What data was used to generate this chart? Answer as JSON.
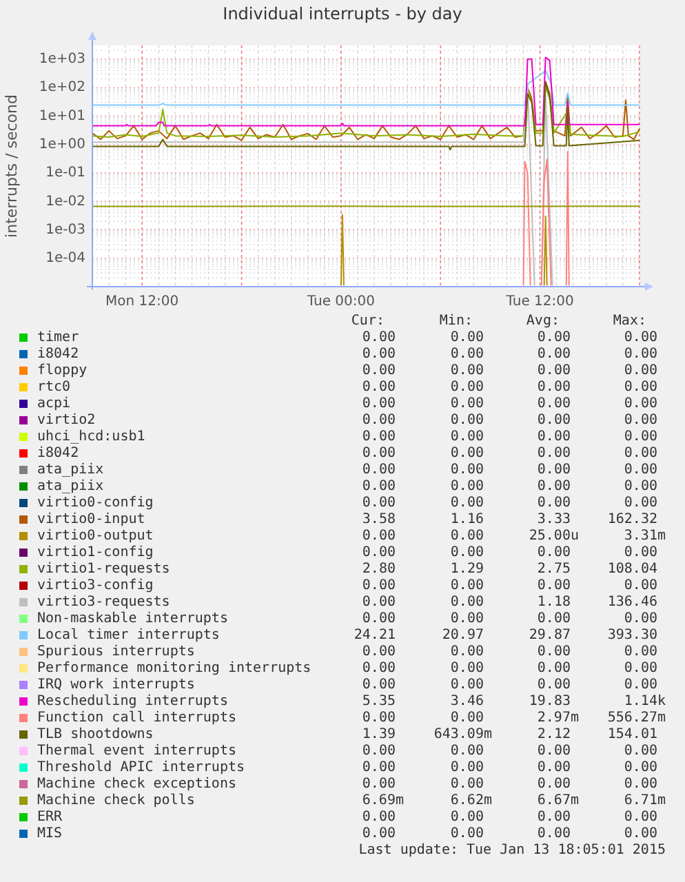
{
  "chart_data": {
    "type": "line",
    "title": "Individual interrupts - by day",
    "ylabel": "interrupts / second",
    "log": "y",
    "grid": true,
    "legend": "bottom",
    "line_style": "solid",
    "marker": "none",
    "xlim": [
      "2015-01-12T09:00",
      "2015-01-13T18:00"
    ],
    "xticks": [
      {
        "value": "2015-01-12T12:00",
        "label": "Mon 12:00"
      },
      {
        "value": "2015-01-12T18:00",
        "label": null
      },
      {
        "value": "2015-01-13T00:00",
        "label": "Tue 00:00"
      },
      {
        "value": "2015-01-13T06:00",
        "label": null
      },
      {
        "value": "2015-01-13T12:00",
        "label": "Tue 12:00"
      },
      {
        "value": "2015-01-13T18:00",
        "label": null
      }
    ],
    "ylim": [
      1e-05,
      3000
    ],
    "yticks": [
      {
        "value": 1000,
        "label": "1e+03"
      },
      {
        "value": 100,
        "label": "1e+02"
      },
      {
        "value": 10,
        "label": "1e+01"
      },
      {
        "value": 1,
        "label": "1e+00"
      },
      {
        "value": 0.1,
        "label": "1e-01"
      },
      {
        "value": 0.01,
        "label": "1e-02"
      },
      {
        "value": 0.001,
        "label": "1e-03"
      },
      {
        "value": 0.0001,
        "label": "1e-04"
      }
    ],
    "series": [
      {
        "name": "timer",
        "color": "#00cc00"
      },
      {
        "name": "i8042",
        "color": "#0066b3"
      },
      {
        "name": "floppy",
        "color": "#ff8000"
      },
      {
        "name": "rtc0",
        "color": "#ffcc00"
      },
      {
        "name": "acpi",
        "color": "#330099"
      },
      {
        "name": "virtio2",
        "color": "#990099"
      },
      {
        "name": "uhci_hcd:usb1",
        "color": "#ccff00"
      },
      {
        "name": "i8042",
        "color": "#ff0000"
      },
      {
        "name": "ata_piix",
        "color": "#808080"
      },
      {
        "name": "ata_piix",
        "color": "#008f00"
      },
      {
        "name": "virtio0-config",
        "color": "#00487d"
      },
      {
        "name": "virtio0-input",
        "color": "#b35a00",
        "x": [
          "2015-01-12T09:00",
          "2015-01-12T09:30",
          "2015-01-12T10:00",
          "2015-01-12T10:30",
          "2015-01-12T11:00",
          "2015-01-12T11:30",
          "2015-01-12T12:00",
          "2015-01-12T12:30",
          "2015-01-12T13:00",
          "2015-01-12T13:30",
          "2015-01-12T14:00",
          "2015-01-12T14:30",
          "2015-01-12T15:00",
          "2015-01-12T15:30",
          "2015-01-12T16:00",
          "2015-01-12T16:30",
          "2015-01-12T17:00",
          "2015-01-12T17:30",
          "2015-01-12T18:00",
          "2015-01-12T18:30",
          "2015-01-12T19:00",
          "2015-01-12T19:30",
          "2015-01-12T20:00",
          "2015-01-12T20:30",
          "2015-01-12T21:00",
          "2015-01-12T21:30",
          "2015-01-12T22:00",
          "2015-01-12T22:30",
          "2015-01-12T23:00",
          "2015-01-12T23:30",
          "2015-01-13T00:00",
          "2015-01-13T00:30",
          "2015-01-13T01:00",
          "2015-01-13T01:30",
          "2015-01-13T02:00",
          "2015-01-13T02:30",
          "2015-01-13T03:00",
          "2015-01-13T03:30",
          "2015-01-13T04:00",
          "2015-01-13T04:30",
          "2015-01-13T05:00",
          "2015-01-13T05:30",
          "2015-01-13T06:00",
          "2015-01-13T06:30",
          "2015-01-13T07:00",
          "2015-01-13T07:30",
          "2015-01-13T08:00",
          "2015-01-13T08:30",
          "2015-01-13T09:00",
          "2015-01-13T09:30",
          "2015-01-13T10:00",
          "2015-01-13T10:30",
          "2015-01-13T11:00",
          "2015-01-13T11:15",
          "2015-01-13T11:30",
          "2015-01-13T11:45",
          "2015-01-13T12:10",
          "2015-01-13T12:20",
          "2015-01-13T12:35",
          "2015-01-13T12:50",
          "2015-01-13T13:30",
          "2015-01-13T13:40",
          "2015-01-13T13:50",
          "2015-01-13T14:30",
          "2015-01-13T15:00",
          "2015-01-13T15:30",
          "2015-01-13T16:00",
          "2015-01-13T16:30",
          "2015-01-13T17:00",
          "2015-01-13T17:10",
          "2015-01-13T17:20",
          "2015-01-13T17:40",
          "2015-01-13T18:00"
        ],
        "values": [
          2.5,
          1.5,
          3,
          1.6,
          2,
          4.5,
          1.5,
          2.5,
          3,
          1.6,
          4.5,
          1.5,
          2,
          2.5,
          1.6,
          5,
          1.8,
          2,
          1.4,
          4,
          1.6,
          2.2,
          1.8,
          5,
          1.5,
          2,
          2.4,
          1.5,
          4.5,
          1.8,
          2,
          4,
          1.5,
          2.2,
          1.6,
          4.5,
          1.8,
          1.5,
          2.3,
          4.5,
          1.6,
          2,
          1.5,
          4.5,
          1.8,
          2.2,
          1.5,
          4.5,
          1.6,
          2.5,
          4,
          1.8,
          2,
          100,
          40,
          3,
          3,
          162.32,
          60,
          3,
          2,
          50,
          2,
          4,
          1.6,
          2.5,
          4.5,
          1.8,
          2,
          36,
          2,
          1.5,
          3.58
        ]
      },
      {
        "name": "virtio0-output",
        "color": "#b38f00",
        "x": [
          "2015-01-13T00:00",
          "2015-01-13T00:05",
          "2015-01-13T00:10",
          "2015-01-13T06:00",
          "2015-01-13T12:15",
          "2015-01-13T12:20",
          "2015-01-13T12:25"
        ],
        "values": [
          1.1e-05,
          0.00331,
          1.1e-05,
          null,
          1.1e-05,
          0.003,
          1.1e-05
        ]
      },
      {
        "name": "virtio1-config",
        "color": "#6b006b"
      },
      {
        "name": "virtio1-requests",
        "color": "#8fb300",
        "x": [
          "2015-01-12T09:00",
          "2015-01-12T10:00",
          "2015-01-12T11:00",
          "2015-01-12T12:00",
          "2015-01-12T13:00",
          "2015-01-12T13:15",
          "2015-01-12T13:30",
          "2015-01-12T14:00",
          "2015-01-12T16:00",
          "2015-01-12T18:00",
          "2015-01-12T20:00",
          "2015-01-12T22:00",
          "2015-01-13T00:00",
          "2015-01-13T02:00",
          "2015-01-13T04:00",
          "2015-01-13T06:00",
          "2015-01-13T08:00",
          "2015-01-13T10:00",
          "2015-01-13T11:00",
          "2015-01-13T11:15",
          "2015-01-13T11:30",
          "2015-01-13T11:45",
          "2015-01-13T12:10",
          "2015-01-13T12:20",
          "2015-01-13T12:35",
          "2015-01-13T12:50",
          "2015-01-13T13:40",
          "2015-01-13T13:50",
          "2015-01-13T15:00",
          "2015-01-13T17:00",
          "2015-01-13T18:00"
        ],
        "values": [
          2,
          1.8,
          2.2,
          1.9,
          2.5,
          17,
          2.5,
          2,
          1.9,
          2.1,
          1.8,
          2,
          2.5,
          2,
          2.2,
          1.9,
          2.3,
          2,
          2,
          80,
          30,
          2.5,
          2.5,
          108.04,
          40,
          2.5,
          15,
          2.3,
          2.1,
          1.9,
          2.8
        ]
      },
      {
        "name": "virtio3-config",
        "color": "#b30000"
      },
      {
        "name": "virtio3-requests",
        "color": "#bebebe",
        "x": [
          "2015-01-12T09:00",
          "2015-01-13T00:00",
          "2015-01-13T11:00",
          "2015-01-13T11:15",
          "2015-01-13T11:40",
          "2015-01-13T12:00",
          "2015-01-13T12:05",
          "2015-01-13T12:20",
          "2015-01-13T12:45"
        ],
        "values": [
          1.2,
          1.2,
          1.2,
          136.46,
          1.1e-05,
          null,
          1.1e-05,
          50,
          1.1e-05
        ]
      },
      {
        "name": "Non-maskable interrupts",
        "color": "#80ff80"
      },
      {
        "name": "Local timer interrupts",
        "color": "#80c9ff",
        "x": [
          "2015-01-12T09:00",
          "2015-01-12T12:00",
          "2015-01-12T13:00",
          "2015-01-12T13:15",
          "2015-01-12T13:30",
          "2015-01-12T18:00",
          "2015-01-13T00:00",
          "2015-01-13T06:00",
          "2015-01-13T11:05",
          "2015-01-13T11:15",
          "2015-01-13T12:20",
          "2015-01-13T12:40",
          "2015-01-13T12:50",
          "2015-01-13T13:30",
          "2015-01-13T13:40",
          "2015-01-13T13:50",
          "2015-01-13T18:00"
        ],
        "values": [
          24,
          24,
          24,
          27,
          24,
          24,
          24,
          24,
          24,
          130,
          393.3,
          140,
          24,
          24,
          63,
          24,
          24.21
        ]
      },
      {
        "name": "Spurious interrupts",
        "color": "#ffc080"
      },
      {
        "name": "Performance monitoring interrupts",
        "color": "#ffe680"
      },
      {
        "name": "IRQ work interrupts",
        "color": "#aa80ff"
      },
      {
        "name": "Rescheduling interrupts",
        "color": "#ee00cc",
        "x": [
          "2015-01-12T09:00",
          "2015-01-12T11:00",
          "2015-01-12T11:05",
          "2015-01-12T11:10",
          "2015-01-12T12:50",
          "2015-01-12T13:00",
          "2015-01-12T13:15",
          "2015-01-12T13:20",
          "2015-01-12T16:00",
          "2015-01-12T16:05",
          "2015-01-12T16:10",
          "2015-01-13T00:00",
          "2015-01-13T00:05",
          "2015-01-13T00:10",
          "2015-01-13T11:05",
          "2015-01-13T11:15",
          "2015-01-13T11:30",
          "2015-01-13T11:45",
          "2015-01-13T12:10",
          "2015-01-13T12:20",
          "2015-01-13T12:35",
          "2015-01-13T12:50",
          "2015-01-13T13:35",
          "2015-01-13T13:40",
          "2015-01-13T13:45",
          "2015-01-13T17:55",
          "2015-01-13T18:00"
        ],
        "values": [
          4.5,
          4.5,
          5,
          4.5,
          4.5,
          6,
          6,
          4.5,
          4.5,
          5,
          4.5,
          4.5,
          5.5,
          4.5,
          4.5,
          1000,
          1000,
          5,
          5,
          1140,
          900,
          5,
          5,
          30,
          5,
          5,
          5.35
        ]
      },
      {
        "name": "Function call interrupts",
        "color": "#ff8080",
        "x": [
          "2015-01-13T11:00",
          "2015-01-13T11:05",
          "2015-01-13T11:15",
          "2015-01-13T11:25",
          "2015-01-13T11:45",
          "2015-01-13T12:05",
          "2015-01-13T12:15",
          "2015-01-13T12:25",
          "2015-01-13T12:40",
          "2015-01-13T13:00",
          "2015-01-13T13:35",
          "2015-01-13T13:40",
          "2015-01-13T13:45"
        ],
        "values": [
          1.1e-05,
          0.25,
          0.1,
          1.1e-05,
          null,
          1.1e-05,
          0.05,
          0.3,
          1.1e-05,
          null,
          1.1e-05,
          0.55627,
          1.1e-05
        ]
      },
      {
        "name": "TLB shootdowns",
        "color": "#666600",
        "x": [
          "2015-01-12T09:00",
          "2015-01-12T13:00",
          "2015-01-12T13:15",
          "2015-01-12T13:30",
          "2015-01-13T00:00",
          "2015-01-13T06:30",
          "2015-01-13T06:35",
          "2015-01-13T06:40",
          "2015-01-13T11:05",
          "2015-01-13T11:15",
          "2015-01-13T11:30",
          "2015-01-13T11:45",
          "2015-01-13T12:10",
          "2015-01-13T12:20",
          "2015-01-13T12:35",
          "2015-01-13T12:50",
          "2015-01-13T13:35",
          "2015-01-13T13:40",
          "2015-01-13T13:45",
          "2015-01-13T18:00"
        ],
        "values": [
          0.85,
          0.85,
          1.5,
          0.85,
          0.85,
          0.85,
          0.65,
          0.85,
          0.85,
          60,
          30,
          0.9,
          0.9,
          154.01,
          50,
          0.9,
          0.9,
          20,
          0.9,
          1.39
        ]
      },
      {
        "name": "Thermal event interrupts",
        "color": "#ffbfff"
      },
      {
        "name": "Threshold APIC interrupts",
        "color": "#00ffcc"
      },
      {
        "name": "Machine check exceptions",
        "color": "#cc6699"
      },
      {
        "name": "Machine check polls",
        "color": "#999900",
        "x": [
          "2015-01-12T09:00",
          "2015-01-12T15:00",
          "2015-01-12T21:00",
          "2015-01-13T03:00",
          "2015-01-13T09:00",
          "2015-01-13T15:00",
          "2015-01-13T18:00"
        ],
        "values": [
          0.00667,
          0.00662,
          0.00671,
          0.00667,
          0.00665,
          0.0067,
          0.00669
        ]
      },
      {
        "name": "ERR",
        "color": "#00cc00"
      },
      {
        "name": "MIS",
        "color": "#0066b3"
      }
    ],
    "annotations": [
      "Cur: Min: Avg: Max:",
      "0.00 0.00 0.00 0.00",
      "0.00 0.00 0.00 0.00",
      "0.00 0.00 0.00 0.00",
      "0.00 0.00 0.00 0.00",
      "0.00 0.00 0.00 0.00",
      "0.00 0.00 0.00 0.00",
      "0.00 0.00 0.00 0.00",
      "0.00 0.00 0.00 0.00",
      "0.00 0.00 0.00 0.00",
      "0.00 0.00 0.00 0.00",
      "0.00 0.00 0.00 0.00",
      "3.58 1.16 3.33 162.32",
      "0.00 0.00 25.00u 3.31m",
      "0.00 0.00 0.00 0.00",
      "2.80 1.29 2.75 108.04",
      "0.00 0.00 0.00 0.00",
      "0.00 0.00 1.18 136.46",
      "0.00 0.00 0.00 0.00",
      "24.21 20.97 29.87 393.30",
      "0.00 0.00 0.00 0.00",
      "0.00 0.00 0.00 0.00",
      "0.00 0.00 0.00 0.00",
      "5.35 3.46 19.83 1.14k",
      "0.00 0.00 2.97m 556.27m",
      "1.39 643.09m 2.12 154.01",
      "0.00 0.00 0.00 0.00",
      "0.00 0.00 0.00 0.00",
      "0.00 0.00 0.00 0.00",
      "6.69m 6.62m 6.67m 6.71m",
      "0.00 0.00 0.00 0.00",
      "0.00 0.00 0.00 0.00",
      "Last update: Tue Jan 13 18:05:01 2015"
    ]
  }
}
